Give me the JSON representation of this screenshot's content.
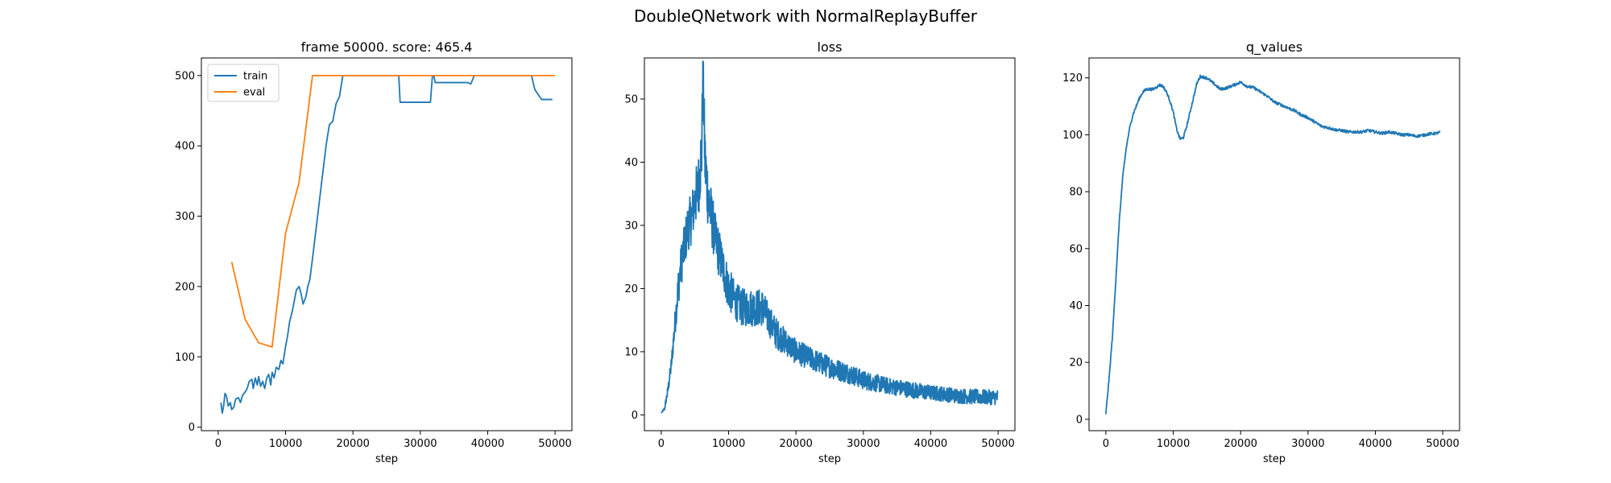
{
  "figure": {
    "title": "DoubleQNetwork with NormalReplayBuffer"
  },
  "colors": {
    "train": "#1f77b4",
    "eval": "#ff7f0e",
    "loss": "#1f77b4",
    "q_values": "#1f77b4",
    "axis": "#000000"
  },
  "chart_data": [
    {
      "type": "line",
      "title": "frame 50000. score: 465.4",
      "xlabel": "step",
      "ylabel": "",
      "xlim": [
        -2500,
        52500
      ],
      "ylim": [
        -5,
        525
      ],
      "xticks": [
        0,
        10000,
        20000,
        30000,
        40000,
        50000
      ],
      "xtick_labels": [
        "0",
        "10000",
        "20000",
        "30000",
        "40000",
        "50000"
      ],
      "yticks": [
        0,
        100,
        200,
        300,
        400,
        500
      ],
      "ytick_labels": [
        "0",
        "100",
        "200",
        "300",
        "400",
        "500"
      ],
      "grid": false,
      "legend": "top-left",
      "series": [
        {
          "name": "train",
          "x": [
            400,
            600,
            800,
            1000,
            1200,
            1500,
            1800,
            2000,
            2300,
            2600,
            3000,
            3300,
            3600,
            4000,
            4300,
            4600,
            5000,
            5200,
            5500,
            5800,
            6000,
            6300,
            6600,
            6900,
            7200,
            7500,
            7800,
            8000,
            8300,
            8600,
            9000,
            9300,
            9600,
            10000,
            10300,
            10600,
            11000,
            11300,
            11600,
            12000,
            12300,
            12600,
            13000,
            13300,
            13600,
            14000,
            14500,
            15000,
            15500,
            16000,
            16500,
            17000,
            17500,
            18000,
            18500,
            19000,
            19500,
            20000,
            22000,
            24000,
            26000,
            26800,
            27000,
            27200,
            29000,
            31000,
            31500,
            31800,
            32000,
            32200,
            32500,
            33000,
            35000,
            37000,
            37500,
            38000,
            40000,
            41500,
            42000,
            44000,
            46000,
            46500,
            47000,
            48000,
            49000,
            49600
          ],
          "y": [
            35,
            20,
            30,
            48,
            45,
            30,
            35,
            25,
            28,
            40,
            42,
            35,
            45,
            50,
            55,
            65,
            68,
            55,
            70,
            60,
            72,
            58,
            65,
            55,
            70,
            75,
            60,
            78,
            70,
            85,
            82,
            95,
            90,
            115,
            130,
            150,
            165,
            180,
            195,
            200,
            190,
            175,
            185,
            200,
            210,
            240,
            280,
            320,
            360,
            400,
            430,
            435,
            460,
            470,
            500,
            500,
            500,
            500,
            500,
            500,
            500,
            500,
            462,
            462,
            462,
            462,
            462,
            500,
            500,
            490,
            490,
            490,
            490,
            490,
            488,
            500,
            500,
            500,
            500,
            500,
            500,
            500,
            480,
            466,
            466,
            466
          ]
        },
        {
          "name": "eval",
          "x": [
            2000,
            4000,
            6000,
            8000,
            10000,
            12000,
            14000,
            16000,
            18000,
            20000,
            22000,
            24000,
            26000,
            28000,
            30000,
            32000,
            34000,
            36000,
            38000,
            40000,
            42000,
            44000,
            46000,
            48000,
            50000
          ],
          "y": [
            235,
            153,
            120,
            114,
            276,
            348,
            500,
            500,
            500,
            500,
            500,
            500,
            500,
            500,
            500,
            500,
            500,
            500,
            500,
            500,
            500,
            500,
            500,
            500,
            500
          ]
        }
      ]
    },
    {
      "type": "line",
      "title": "loss",
      "xlabel": "step",
      "ylabel": "",
      "xlim": [
        -2500,
        52500
      ],
      "ylim": [
        -2.5,
        56.5
      ],
      "xticks": [
        0,
        10000,
        20000,
        30000,
        40000,
        50000
      ],
      "xtick_labels": [
        "0",
        "10000",
        "20000",
        "30000",
        "40000",
        "50000"
      ],
      "yticks": [
        0,
        10,
        20,
        30,
        40,
        50
      ],
      "ytick_labels": [
        "0",
        "10",
        "20",
        "30",
        "40",
        "50"
      ],
      "grid": false,
      "series": [
        {
          "x": [
            0,
            500,
            1000,
            1500,
            2000,
            2500,
            3000,
            3500,
            4000,
            4500,
            5000,
            5500,
            6000,
            6200,
            6500,
            7000,
            7500,
            8000,
            8500,
            9000,
            9500,
            10000,
            11000,
            12000,
            13000,
            14000,
            15000,
            16000,
            17000,
            18000,
            19000,
            20000,
            22000,
            24000,
            26000,
            28000,
            30000,
            32000,
            34000,
            36000,
            38000,
            40000,
            42000,
            44000,
            46000,
            48000,
            50000
          ],
          "y": [
            0.3,
            1,
            4,
            8,
            14,
            20,
            24,
            27,
            30,
            31,
            34,
            36,
            42,
            54,
            40,
            34,
            31,
            28,
            26,
            24,
            22,
            20,
            18,
            17,
            17,
            17,
            17,
            15,
            13,
            12,
            11,
            10,
            9,
            8,
            7.2,
            6.5,
            5.5,
            5,
            4.5,
            4.2,
            3.8,
            3.5,
            3.3,
            3,
            2.9,
            2.8,
            2.8
          ],
          "noise": [
            0,
            0.3,
            0.8,
            1.2,
            2,
            3,
            3.5,
            3.5,
            4,
            4,
            4.5,
            5,
            6,
            4,
            6,
            5,
            4.5,
            4,
            4,
            3.5,
            3.5,
            3.5,
            3,
            3,
            3,
            3,
            3,
            2.5,
            2.5,
            2.2,
            2,
            2,
            1.8,
            1.8,
            1.7,
            1.6,
            1.5,
            1.4,
            1.3,
            1.3,
            1.3,
            1.2,
            1.2,
            1.2,
            1.2,
            1.2,
            1.2
          ]
        }
      ]
    },
    {
      "type": "line",
      "title": "q_values",
      "xlabel": "step",
      "ylabel": "",
      "xlim": [
        -2500,
        52500
      ],
      "ylim": [
        -4,
        127
      ],
      "xticks": [
        0,
        10000,
        20000,
        30000,
        40000,
        50000
      ],
      "xtick_labels": [
        "0",
        "10000",
        "20000",
        "30000",
        "40000",
        "50000"
      ],
      "yticks": [
        0,
        20,
        40,
        60,
        80,
        100,
        120
      ],
      "ytick_labels": [
        "0",
        "20",
        "40",
        "60",
        "80",
        "100",
        "120"
      ],
      "grid": false,
      "series": [
        {
          "x": [
            0,
            500,
            1000,
            1500,
            2000,
            2500,
            3000,
            3500,
            4000,
            4500,
            5000,
            5500,
            6000,
            7000,
            8000,
            8500,
            9000,
            9500,
            10000,
            10500,
            11000,
            11500,
            12000,
            12500,
            13000,
            13500,
            14000,
            15000,
            16000,
            17000,
            18000,
            19000,
            20000,
            21000,
            22000,
            23000,
            24000,
            25000,
            26000,
            27000,
            28000,
            29000,
            30000,
            31000,
            32000,
            33000,
            34000,
            35000,
            36000,
            37000,
            38000,
            39000,
            40000,
            41000,
            42000,
            43000,
            44000,
            45000,
            46000,
            47000,
            48000,
            49000,
            49600
          ],
          "y": [
            2,
            15,
            30,
            50,
            70,
            85,
            95,
            102,
            107,
            110,
            113,
            115,
            116,
            116,
            117.5,
            117,
            115,
            112,
            108,
            102,
            98.5,
            99,
            103,
            108,
            113,
            118,
            120.5,
            120,
            118,
            116,
            116.5,
            117.5,
            118.5,
            117,
            116.5,
            115,
            113.5,
            111.5,
            110.5,
            109.5,
            108.5,
            107,
            106,
            104.5,
            103,
            102.5,
            101.8,
            101.5,
            101,
            101,
            101,
            101.5,
            101,
            100.5,
            101,
            100.5,
            100,
            100,
            99.5,
            99.8,
            100.3,
            100.5,
            100.8
          ]
        }
      ]
    }
  ]
}
